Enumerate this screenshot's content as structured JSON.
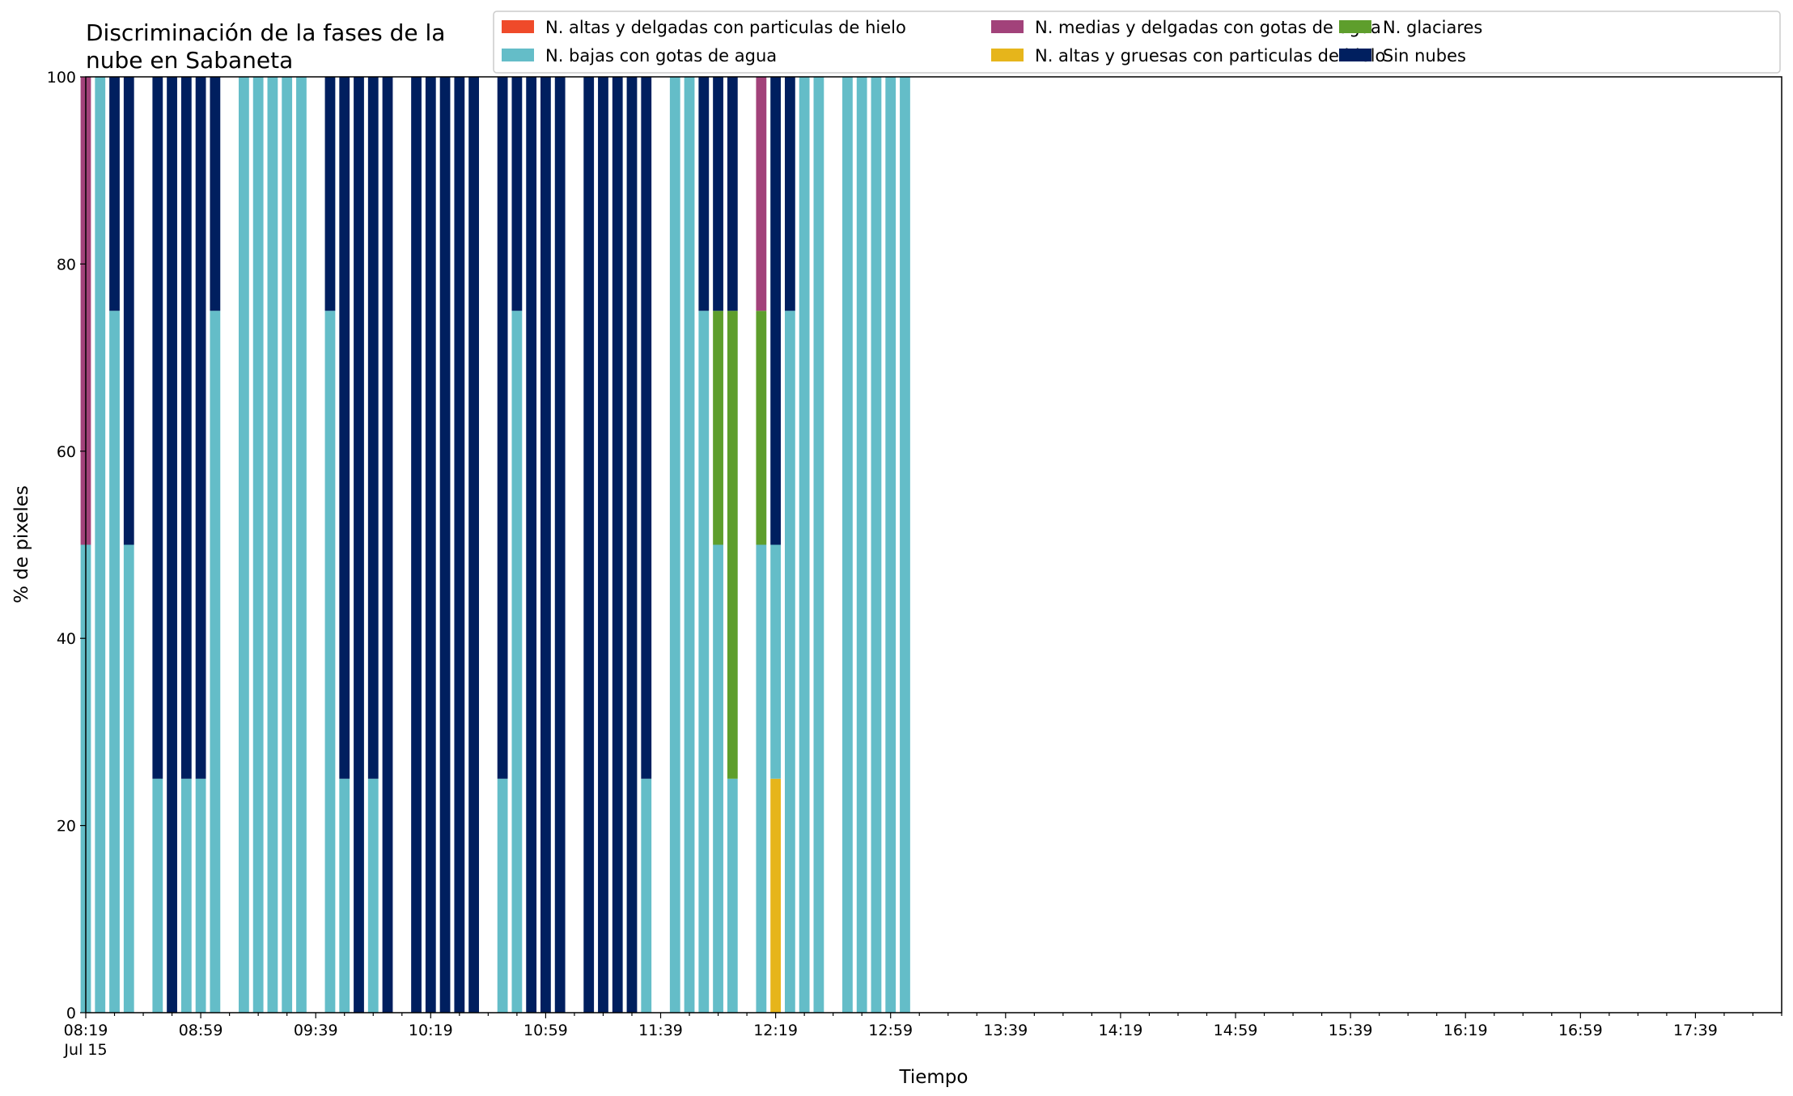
{
  "chart_data": {
    "type": "bar",
    "stacked": true,
    "title": "Discriminación de la fases de la nube en Sabaneta",
    "title_lines": [
      "Discriminación de la fases de la",
      "nube en Sabaneta"
    ],
    "xlabel": "Tiempo",
    "ylabel": "% de pixeles",
    "ylim": [
      0,
      100
    ],
    "y_ticks": [
      0,
      20,
      40,
      60,
      80,
      100
    ],
    "x_start": "08:19",
    "x_end": "18:09",
    "x_step_minutes": 10,
    "x_tick_labels": [
      "08:19",
      "08:59",
      "09:39",
      "10:19",
      "10:59",
      "11:39",
      "12:19",
      "12:59",
      "13:39",
      "14:19",
      "14:59",
      "15:39",
      "16:19",
      "16:59",
      "17:39"
    ],
    "x_date_label": "Jul 15",
    "grid": false,
    "legend_position": "top-right",
    "series": [
      {
        "name": "N. altas y delgadas con particulas de hielo",
        "color": "#EF4A2A"
      },
      {
        "name": "N. altas y gruesas con particulas de hielo",
        "color": "#E6B51B"
      },
      {
        "name": "N. bajas con gotas de agua",
        "color": "#64BDC8"
      },
      {
        "name": "N. glaciares",
        "color": "#5E9E2C"
      },
      {
        "name": "N. medias y delgadas con gotas de agua",
        "color": "#A2427A"
      },
      {
        "name": "Sin nubes",
        "color": "#001F5F"
      }
    ],
    "legend_order": [
      0,
      2,
      4,
      1,
      3,
      5
    ],
    "stack_order": [
      0,
      1,
      2,
      3,
      4,
      5
    ],
    "bars": [
      {
        "time": "08:19",
        "values": [
          0,
          0,
          50,
          0,
          50,
          0
        ]
      },
      {
        "time": "08:24",
        "values": [
          0,
          0,
          100,
          0,
          0,
          0
        ]
      },
      {
        "time": "08:29",
        "values": [
          0,
          0,
          75,
          0,
          0,
          25
        ]
      },
      {
        "time": "08:34",
        "values": [
          0,
          0,
          50,
          0,
          0,
          50
        ]
      },
      {
        "time": "08:44",
        "values": [
          0,
          0,
          25,
          0,
          0,
          75
        ]
      },
      {
        "time": "08:49",
        "values": [
          0,
          0,
          0,
          0,
          0,
          100
        ]
      },
      {
        "time": "08:54",
        "values": [
          0,
          0,
          25,
          0,
          0,
          75
        ]
      },
      {
        "time": "08:59",
        "values": [
          0,
          0,
          25,
          0,
          0,
          75
        ]
      },
      {
        "time": "09:04",
        "values": [
          0,
          0,
          75,
          0,
          0,
          25
        ]
      },
      {
        "time": "09:14",
        "values": [
          0,
          0,
          100,
          0,
          0,
          0
        ]
      },
      {
        "time": "09:19",
        "values": [
          0,
          0,
          100,
          0,
          0,
          0
        ]
      },
      {
        "time": "09:24",
        "values": [
          0,
          0,
          100,
          0,
          0,
          0
        ]
      },
      {
        "time": "09:29",
        "values": [
          0,
          0,
          100,
          0,
          0,
          0
        ]
      },
      {
        "time": "09:34",
        "values": [
          0,
          0,
          100,
          0,
          0,
          0
        ]
      },
      {
        "time": "09:44",
        "values": [
          0,
          0,
          75,
          0,
          0,
          25
        ]
      },
      {
        "time": "09:49",
        "values": [
          0,
          0,
          25,
          0,
          0,
          75
        ]
      },
      {
        "time": "09:54",
        "values": [
          0,
          0,
          0,
          0,
          0,
          100
        ]
      },
      {
        "time": "09:59",
        "values": [
          0,
          0,
          25,
          0,
          0,
          75
        ]
      },
      {
        "time": "10:04",
        "values": [
          0,
          0,
          0,
          0,
          0,
          100
        ]
      },
      {
        "time": "10:14",
        "values": [
          0,
          0,
          0,
          0,
          0,
          100
        ]
      },
      {
        "time": "10:19",
        "values": [
          0,
          0,
          0,
          0,
          0,
          100
        ]
      },
      {
        "time": "10:24",
        "values": [
          0,
          0,
          0,
          0,
          0,
          100
        ]
      },
      {
        "time": "10:29",
        "values": [
          0,
          0,
          0,
          0,
          0,
          100
        ]
      },
      {
        "time": "10:34",
        "values": [
          0,
          0,
          0,
          0,
          0,
          100
        ]
      },
      {
        "time": "10:44",
        "values": [
          0,
          0,
          25,
          0,
          0,
          75
        ]
      },
      {
        "time": "10:49",
        "values": [
          0,
          0,
          75,
          0,
          0,
          25
        ]
      },
      {
        "time": "10:54",
        "values": [
          0,
          0,
          0,
          0,
          0,
          100
        ]
      },
      {
        "time": "10:59",
        "values": [
          0,
          0,
          0,
          0,
          0,
          100
        ]
      },
      {
        "time": "11:04",
        "values": [
          0,
          0,
          0,
          0,
          0,
          100
        ]
      },
      {
        "time": "11:14",
        "values": [
          0,
          0,
          0,
          0,
          0,
          100
        ]
      },
      {
        "time": "11:19",
        "values": [
          0,
          0,
          0,
          0,
          0,
          100
        ]
      },
      {
        "time": "11:24",
        "values": [
          0,
          0,
          0,
          0,
          0,
          100
        ]
      },
      {
        "time": "11:29",
        "values": [
          0,
          0,
          0,
          0,
          0,
          100
        ]
      },
      {
        "time": "11:34",
        "values": [
          0,
          0,
          25,
          0,
          0,
          75
        ]
      },
      {
        "time": "11:44",
        "values": [
          0,
          0,
          100,
          0,
          0,
          0
        ]
      },
      {
        "time": "11:49",
        "values": [
          0,
          0,
          100,
          0,
          0,
          0
        ]
      },
      {
        "time": "11:54",
        "values": [
          0,
          0,
          75,
          0,
          0,
          25
        ]
      },
      {
        "time": "11:59",
        "values": [
          0,
          0,
          50,
          25,
          0,
          25
        ]
      },
      {
        "time": "12:04",
        "values": [
          0,
          0,
          25,
          50,
          0,
          25
        ]
      },
      {
        "time": "12:14",
        "values": [
          0,
          0,
          50,
          25,
          25,
          0
        ]
      },
      {
        "time": "12:19",
        "values": [
          0,
          25,
          25,
          0,
          0,
          50
        ]
      },
      {
        "time": "12:24",
        "values": [
          0,
          0,
          75,
          0,
          0,
          25
        ]
      },
      {
        "time": "12:29",
        "values": [
          0,
          0,
          100,
          0,
          0,
          0
        ]
      },
      {
        "time": "12:34",
        "values": [
          0,
          0,
          100,
          0,
          0,
          0
        ]
      },
      {
        "time": "12:44",
        "values": [
          0,
          0,
          100,
          0,
          0,
          0
        ]
      },
      {
        "time": "12:49",
        "values": [
          0,
          0,
          100,
          0,
          0,
          0
        ]
      },
      {
        "time": "12:54",
        "values": [
          0,
          0,
          100,
          0,
          0,
          0
        ]
      },
      {
        "time": "12:59",
        "values": [
          0,
          0,
          100,
          0,
          0,
          0
        ]
      },
      {
        "time": "13:04",
        "values": [
          0,
          0,
          100,
          0,
          0,
          0
        ]
      }
    ]
  }
}
